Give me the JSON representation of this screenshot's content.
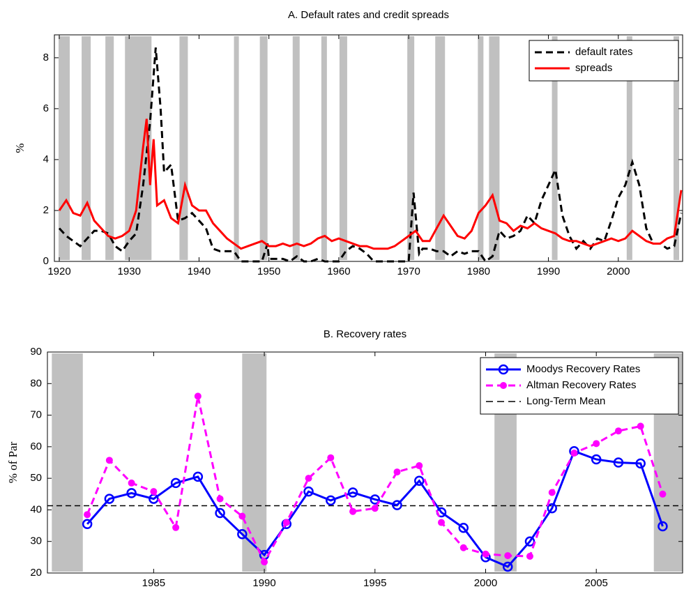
{
  "chart_data": [
    {
      "type": "line",
      "title": "A. Default rates and credit spreads",
      "ylabel": "%",
      "xlim": [
        1919.3,
        2009.2
      ],
      "xticks": [
        1920,
        1930,
        1940,
        1950,
        1960,
        1970,
        1980,
        1990,
        2000
      ],
      "ylim": [
        0,
        8.9
      ],
      "yticks": [
        0,
        2,
        4,
        6,
        8
      ],
      "legend": "upper right",
      "band_color": "#c0c0c0",
      "shaded_periods": [
        [
          1919.9,
          1921.5
        ],
        [
          1923.2,
          1924.5
        ],
        [
          1926.6,
          1927.8
        ],
        [
          1929.4,
          1933.2
        ],
        [
          1937.2,
          1938.4
        ],
        [
          1945.0,
          1945.7
        ],
        [
          1948.7,
          1949.8
        ],
        [
          1953.4,
          1954.4
        ],
        [
          1957.5,
          1958.3
        ],
        [
          1960.1,
          1961.2
        ],
        [
          1969.8,
          1970.8
        ],
        [
          1973.8,
          1975.2
        ],
        [
          1979.9,
          1980.7
        ],
        [
          1981.5,
          1983.0
        ],
        [
          1990.5,
          1991.3
        ],
        [
          2001.2,
          2002.0
        ],
        [
          2007.9,
          2008.7
        ]
      ],
      "series": [
        {
          "name": "default rates",
          "color": "#000000",
          "linestyle": "dashed",
          "x": [
            1920,
            1921,
            1922,
            1923,
            1924,
            1925,
            1926,
            1927,
            1928,
            1929,
            1930,
            1931,
            1932,
            1933,
            1933.8,
            1934.5,
            1935,
            1936,
            1937,
            1938,
            1939,
            1940,
            1941,
            1942,
            1943,
            1944,
            1945,
            1946,
            1947,
            1948,
            1949,
            1949.8,
            1950,
            1951,
            1952,
            1953,
            1954,
            1955,
            1956,
            1957,
            1958,
            1959,
            1960,
            1961,
            1962,
            1963,
            1964,
            1965,
            1966,
            1967,
            1968,
            1969,
            1970,
            1970.7,
            1971.5,
            1972,
            1973,
            1974,
            1975,
            1976,
            1977,
            1978,
            1979,
            1980,
            1981,
            1982,
            1983,
            1984,
            1985,
            1986,
            1987,
            1988,
            1989,
            1990,
            1991,
            1992,
            1993,
            1994,
            1995,
            1996,
            1997,
            1998,
            1999,
            2000,
            2001,
            2002,
            2003,
            2004,
            2005,
            2006,
            2007,
            2008,
            2009
          ],
          "values": [
            1.3,
            1.0,
            0.8,
            0.6,
            0.9,
            1.2,
            1.2,
            1.1,
            0.6,
            0.4,
            0.8,
            1.1,
            3.0,
            5.5,
            8.4,
            6.0,
            3.5,
            3.8,
            1.6,
            1.7,
            1.9,
            1.6,
            1.3,
            0.5,
            0.4,
            0.4,
            0.4,
            0,
            0,
            0,
            0,
            0.7,
            0.1,
            0.1,
            0.1,
            0,
            0.2,
            0,
            0,
            0.1,
            0,
            0,
            0,
            0.4,
            0.6,
            0.5,
            0.3,
            0,
            0,
            0,
            0,
            0,
            0,
            2.7,
            0.3,
            0.5,
            0.5,
            0.4,
            0.4,
            0.2,
            0.4,
            0.3,
            0.4,
            0.4,
            0,
            0.2,
            1.2,
            0.9,
            1.0,
            1.2,
            1.8,
            1.5,
            2.4,
            3.0,
            3.6,
            1.8,
            1.0,
            0.5,
            0.8,
            0.5,
            0.9,
            0.8,
            1.6,
            2.5,
            3.0,
            3.9,
            3.0,
            1.3,
            0.7,
            0.7,
            0.5,
            0.6,
            1.9
          ]
        },
        {
          "name": "spreads",
          "color": "#ff0000",
          "linestyle": "solid",
          "x": [
            1920,
            1921,
            1922,
            1923,
            1924,
            1925,
            1926,
            1927,
            1928,
            1929,
            1930,
            1931,
            1932,
            1932.5,
            1933,
            1933.5,
            1934,
            1935,
            1936,
            1937,
            1938,
            1939,
            1940,
            1941,
            1942,
            1943,
            1944,
            1945,
            1946,
            1947,
            1948,
            1949,
            1950,
            1951,
            1952,
            1953,
            1954,
            1955,
            1956,
            1957,
            1958,
            1959,
            1960,
            1961,
            1962,
            1963,
            1964,
            1965,
            1966,
            1967,
            1968,
            1969,
            1970,
            1971,
            1972,
            1973,
            1974,
            1975,
            1976,
            1977,
            1978,
            1979,
            1980,
            1981,
            1982,
            1983,
            1984,
            1985,
            1986,
            1987,
            1988,
            1989,
            1990,
            1991,
            1992,
            1993,
            1994,
            1995,
            1996,
            1997,
            1998,
            1999,
            2000,
            2001,
            2002,
            2003,
            2004,
            2005,
            2006,
            2007,
            2008,
            2009
          ],
          "values": [
            2.0,
            2.4,
            1.9,
            1.8,
            2.3,
            1.6,
            1.3,
            1.0,
            0.9,
            1.0,
            1.2,
            2.0,
            4.5,
            5.6,
            3.0,
            4.8,
            2.2,
            2.4,
            1.7,
            1.5,
            3.0,
            2.2,
            2.0,
            2.0,
            1.5,
            1.2,
            0.9,
            0.7,
            0.5,
            0.6,
            0.7,
            0.8,
            0.6,
            0.6,
            0.7,
            0.6,
            0.7,
            0.6,
            0.7,
            0.9,
            1.0,
            0.8,
            0.9,
            0.8,
            0.7,
            0.6,
            0.6,
            0.5,
            0.5,
            0.5,
            0.6,
            0.8,
            1.0,
            1.2,
            0.8,
            0.8,
            1.3,
            1.8,
            1.4,
            1.0,
            0.9,
            1.2,
            1.9,
            2.2,
            2.6,
            1.6,
            1.5,
            1.2,
            1.4,
            1.3,
            1.5,
            1.3,
            1.2,
            1.1,
            0.9,
            0.8,
            0.8,
            0.7,
            0.6,
            0.7,
            0.8,
            0.9,
            0.8,
            0.9,
            1.2,
            1.0,
            0.8,
            0.7,
            0.7,
            0.9,
            1.0,
            2.8
          ]
        }
      ]
    },
    {
      "type": "line",
      "title": "B. Recovery rates",
      "ylabel": "% of Par",
      "xlim": [
        1980.2,
        2008.9
      ],
      "xticks": [
        1985,
        1990,
        1995,
        2000,
        2005
      ],
      "ylim": [
        20,
        90
      ],
      "yticks": [
        20,
        30,
        40,
        50,
        60,
        70,
        80,
        90
      ],
      "legend": "upper right",
      "band_color": "#c0c0c0",
      "shaded_periods": [
        [
          1980.4,
          1981.8
        ],
        [
          1989.0,
          1990.1
        ],
        [
          2000.4,
          2001.4
        ],
        [
          2007.6,
          2008.9
        ]
      ],
      "x": [
        1982,
        1983,
        1984,
        1985,
        1986,
        1987,
        1988,
        1989,
        1990,
        1991,
        1992,
        1993,
        1994,
        1995,
        1996,
        1997,
        1998,
        1999,
        2000,
        2001,
        2002,
        2003,
        2004,
        2005,
        2006,
        2007,
        2008
      ],
      "series": [
        {
          "name": "Moodys Recovery Rates",
          "color": "#0000ff",
          "linestyle": "solid",
          "marker": "circle",
          "values": [
            35.5,
            43.5,
            45.3,
            43.5,
            48.5,
            50.5,
            39,
            32.3,
            25.7,
            35.5,
            45.8,
            43,
            45.5,
            43.3,
            41.5,
            49.2,
            39.2,
            34.3,
            25,
            22,
            30,
            40.5,
            58.6,
            56,
            55,
            54.7,
            34.8
          ]
        },
        {
          "name": "Altman Recovery Rates",
          "color": "#ff00ff",
          "linestyle": "dashed",
          "marker": "dot",
          "values": [
            38.5,
            55.7,
            48.5,
            45.8,
            34.4,
            76,
            43.5,
            38,
            23.5,
            36,
            50,
            56.5,
            39.5,
            40.5,
            52,
            54,
            36,
            28,
            26,
            25.5,
            25.3,
            45.5,
            58,
            61,
            65,
            66.5,
            45
          ]
        }
      ],
      "reference_line": {
        "name": "Long-Term Mean",
        "value": 41.3,
        "color": "#000000",
        "linestyle": "dashed"
      }
    }
  ]
}
